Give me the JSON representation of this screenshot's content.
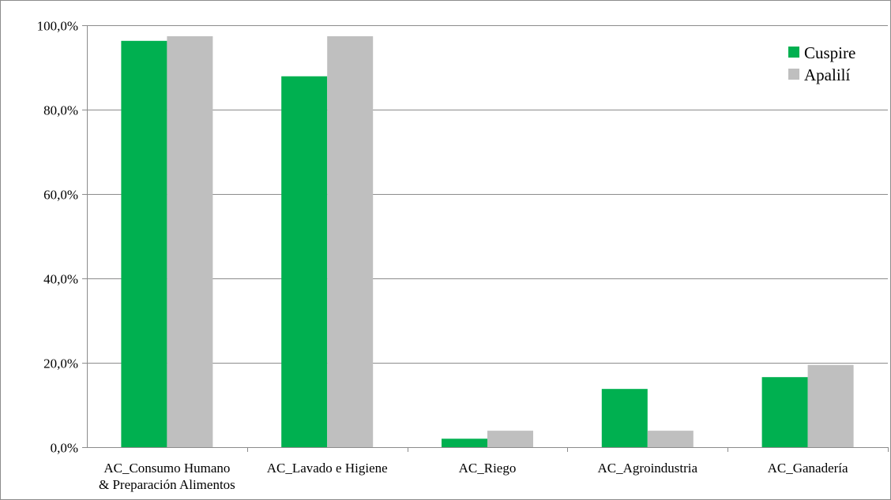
{
  "chart_data": {
    "type": "bar",
    "title": "",
    "xlabel": "",
    "ylabel": "",
    "categories": [
      [
        "AC_Consumo Humano",
        "& Preparación Alimentos"
      ],
      [
        "AC_Lavado e Higiene"
      ],
      [
        "AC_Riego"
      ],
      [
        "AC_Agroindustria"
      ],
      [
        "AC_Ganadería"
      ]
    ],
    "series": [
      {
        "name": "Cuspire",
        "color": "#00b050",
        "values": [
          96.3,
          87.9,
          2.0,
          13.8,
          16.6
        ]
      },
      {
        "name": "Apalilí",
        "color": "#bfbfbf",
        "values": [
          97.4,
          97.4,
          3.9,
          3.9,
          19.5
        ]
      }
    ],
    "ylim": [
      0,
      100
    ],
    "yticks": [
      0,
      20,
      40,
      60,
      80,
      100
    ],
    "ytick_labels": [
      "0,0%",
      "20,0%",
      "40,0%",
      "60,0%",
      "80,0%",
      "100,0%"
    ],
    "grid": true,
    "legend_position": "top-right"
  }
}
